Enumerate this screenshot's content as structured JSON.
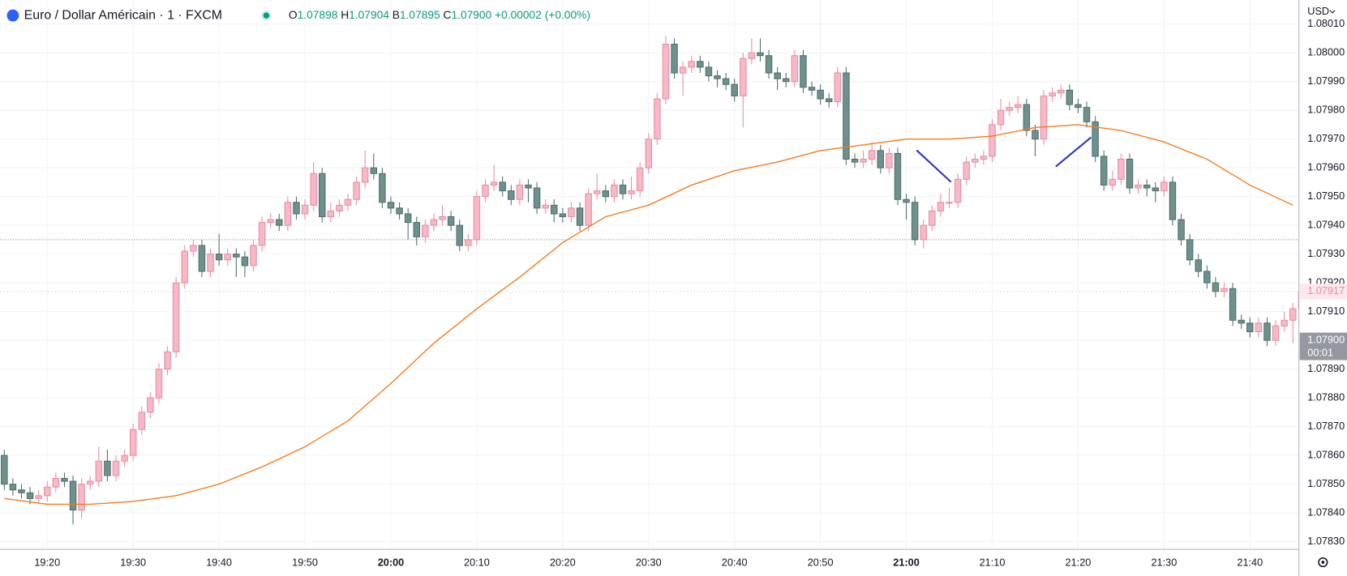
{
  "header": {
    "symbol": "Euro / Dollar Américain · 1 · FXCM",
    "legend": [
      {
        "key": "O",
        "value": 1.07898
      },
      {
        "key": "H",
        "value": 1.07904
      },
      {
        "key": "B",
        "value": 1.07895
      },
      {
        "key": "C",
        "value": {
          "value": 1.079,
          "label": "1.07900"
        }
      }
    ],
    "change": {
      "value": 2e-05,
      "label": "+0.00002"
    },
    "change_pct": {
      "value": 0,
      "label": "(+0.00%)"
    },
    "currency": "USD"
  },
  "chart_data": {
    "type": "candlestick",
    "categories": [
      null,
      null,
      null,
      null,
      null,
      "19:20",
      null,
      null,
      null,
      null,
      null,
      null,
      null,
      null,
      null,
      "19:30",
      null,
      null,
      null,
      null,
      null,
      null,
      null,
      null,
      null,
      "19:40",
      null,
      null,
      null,
      null,
      null,
      null,
      null,
      null,
      null,
      "19:50",
      null,
      null,
      null,
      null,
      null,
      null,
      null,
      null,
      null,
      "20:00",
      null,
      null,
      null,
      null,
      null,
      null,
      null,
      null,
      null,
      "20:10",
      null,
      null,
      null,
      null,
      null,
      null,
      null,
      null,
      null,
      "20:20",
      null,
      null,
      null,
      null,
      null,
      null,
      null,
      null,
      null,
      "20:30",
      null,
      null,
      null,
      null,
      null,
      null,
      null,
      null,
      null,
      "20:40",
      null,
      null,
      null,
      null,
      null,
      null,
      null,
      null,
      null,
      "20:50",
      null,
      null,
      null,
      null,
      null,
      null,
      null,
      null,
      null,
      "21:00",
      null,
      null,
      null,
      null,
      null,
      null,
      null,
      null,
      null,
      "21:10",
      null,
      null,
      null,
      null,
      null,
      null,
      null,
      null,
      null,
      "21:20",
      null,
      null,
      null,
      null,
      null,
      null,
      null,
      null,
      null,
      "21:30",
      null,
      null,
      null,
      null,
      null,
      null,
      null,
      null,
      null,
      "21:40",
      null,
      null,
      null,
      null,
      null,
      null
    ],
    "ohlc": [
      [
        1.0786,
        1.07862,
        1.07848,
        1.0785
      ],
      [
        1.0785,
        1.07852,
        1.07846,
        1.07848
      ],
      [
        1.07848,
        1.0785,
        1.07845,
        1.07847
      ],
      [
        1.07847,
        1.07849,
        1.07843,
        1.07845
      ],
      [
        1.07845,
        1.07848,
        1.07843,
        1.07846
      ],
      [
        1.07846,
        1.07851,
        1.07844,
        1.07849
      ],
      [
        1.07849,
        1.07854,
        1.07847,
        1.07852
      ],
      [
        1.07852,
        1.07854,
        1.07849,
        1.07851
      ],
      [
        1.07851,
        1.07853,
        1.07836,
        1.07841
      ],
      [
        1.07841,
        1.07852,
        1.07838,
        1.0785
      ],
      [
        1.0785,
        1.07853,
        1.07848,
        1.07851
      ],
      [
        1.07851,
        1.07863,
        1.07849,
        1.07858
      ],
      [
        1.07858,
        1.07862,
        1.07851,
        1.07853
      ],
      [
        1.07853,
        1.0786,
        1.07851,
        1.07858
      ],
      [
        1.07858,
        1.07862,
        1.07856,
        1.0786
      ],
      [
        1.0786,
        1.07871,
        1.07858,
        1.07869
      ],
      [
        1.07869,
        1.07877,
        1.07867,
        1.07875
      ],
      [
        1.07875,
        1.07882,
        1.07873,
        1.0788
      ],
      [
        1.0788,
        1.07892,
        1.07878,
        1.0789
      ],
      [
        1.0789,
        1.07898,
        1.07888,
        1.07896
      ],
      [
        1.07896,
        1.07922,
        1.07894,
        1.0792
      ],
      [
        1.0792,
        1.07933,
        1.07918,
        1.07931
      ],
      [
        1.07931,
        1.07935,
        1.07929,
        1.07933
      ],
      [
        1.07933,
        1.07935,
        1.07922,
        1.07924
      ],
      [
        1.07924,
        1.07932,
        1.07922,
        1.0793
      ],
      [
        1.0793,
        1.07937,
        1.07926,
        1.07928
      ],
      [
        1.07928,
        1.07932,
        1.07926,
        1.0793
      ],
      [
        1.0793,
        1.07932,
        1.07922,
        1.07929
      ],
      [
        1.07929,
        1.07931,
        1.07922,
        1.07926
      ],
      [
        1.07926,
        1.07935,
        1.07924,
        1.07933
      ],
      [
        1.07933,
        1.07943,
        1.07931,
        1.07941
      ],
      [
        1.07941,
        1.07944,
        1.07939,
        1.07942
      ],
      [
        1.07942,
        1.07944,
        1.07938,
        1.0794
      ],
      [
        1.0794,
        1.0795,
        1.07938,
        1.07948
      ],
      [
        1.07948,
        1.0795,
        1.07942,
        1.07944
      ],
      [
        1.07944,
        1.07949,
        1.07942,
        1.07947
      ],
      [
        1.07947,
        1.07962,
        1.07945,
        1.07958
      ],
      [
        1.07958,
        1.0796,
        1.07941,
        1.07943
      ],
      [
        1.07943,
        1.07948,
        1.07941,
        1.07945
      ],
      [
        1.07945,
        1.07949,
        1.07943,
        1.07947
      ],
      [
        1.07947,
        1.07951,
        1.07945,
        1.07949
      ],
      [
        1.07949,
        1.07957,
        1.07947,
        1.07955
      ],
      [
        1.07955,
        1.07966,
        1.07953,
        1.0796
      ],
      [
        1.0796,
        1.07965,
        1.07956,
        1.07958
      ],
      [
        1.07958,
        1.0796,
        1.07946,
        1.07948
      ],
      [
        1.07948,
        1.0795,
        1.07944,
        1.07946
      ],
      [
        1.07946,
        1.07948,
        1.07942,
        1.07944
      ],
      [
        1.07944,
        1.07946,
        1.07935,
        1.07941
      ],
      [
        1.07941,
        1.07943,
        1.07933,
        1.07936
      ],
      [
        1.07936,
        1.07942,
        1.07934,
        1.0794
      ],
      [
        1.0794,
        1.07944,
        1.07938,
        1.07942
      ],
      [
        1.07942,
        1.07947,
        1.0794,
        1.07943
      ],
      [
        1.07943,
        1.07945,
        1.07938,
        1.0794
      ],
      [
        1.0794,
        1.07942,
        1.07931,
        1.07933
      ],
      [
        1.07933,
        1.07937,
        1.07931,
        1.07935
      ],
      [
        1.07935,
        1.07952,
        1.07933,
        1.0795
      ],
      [
        1.0795,
        1.07956,
        1.07948,
        1.07954
      ],
      [
        1.07954,
        1.07961,
        1.07952,
        1.07955
      ],
      [
        1.07955,
        1.07957,
        1.0795,
        1.07952
      ],
      [
        1.07952,
        1.07954,
        1.07947,
        1.07949
      ],
      [
        1.07949,
        1.07956,
        1.07947,
        1.07954
      ],
      [
        1.07954,
        1.07956,
        1.07948,
        1.07953
      ],
      [
        1.07953,
        1.07955,
        1.07944,
        1.07946
      ],
      [
        1.07946,
        1.07949,
        1.07944,
        1.07947
      ],
      [
        1.07947,
        1.07949,
        1.07941,
        1.07944
      ],
      [
        1.07944,
        1.07946,
        1.07941,
        1.07943
      ],
      [
        1.07943,
        1.07948,
        1.07941,
        1.07946
      ],
      [
        1.07946,
        1.07948,
        1.07938,
        1.0794
      ],
      [
        1.0794,
        1.07953,
        1.07938,
        1.07951
      ],
      [
        1.07951,
        1.07958,
        1.07949,
        1.07952
      ],
      [
        1.07952,
        1.07954,
        1.07948,
        1.0795
      ],
      [
        1.0795,
        1.07956,
        1.07948,
        1.07954
      ],
      [
        1.07954,
        1.07956,
        1.07949,
        1.07951
      ],
      [
        1.07951,
        1.07957,
        1.07949,
        1.07952
      ],
      [
        1.07952,
        1.07962,
        1.0795,
        1.0796
      ],
      [
        1.0796,
        1.07972,
        1.07958,
        1.0797
      ],
      [
        1.0797,
        1.07986,
        1.07968,
        1.07984
      ],
      [
        1.07984,
        1.08006,
        1.07982,
        1.08003
      ],
      [
        1.08003,
        1.08005,
        1.07991,
        1.07993
      ],
      [
        1.07993,
        1.07997,
        1.07985,
        1.07995
      ],
      [
        1.07995,
        1.07999,
        1.07993,
        1.07997
      ],
      [
        1.07997,
        1.07999,
        1.07993,
        1.07995
      ],
      [
        1.07995,
        1.07997,
        1.0799,
        1.07992
      ],
      [
        1.07992,
        1.07994,
        1.07988,
        1.07991
      ],
      [
        1.07991,
        1.07993,
        1.07987,
        1.07989
      ],
      [
        1.07989,
        1.07991,
        1.07983,
        1.07985
      ],
      [
        1.07985,
        1.08,
        1.07974,
        1.07998
      ],
      [
        1.07998,
        1.08005,
        1.07996,
        1.08
      ],
      [
        1.08,
        1.08005,
        1.07997,
        1.07999
      ],
      [
        1.07999,
        1.08001,
        1.07991,
        1.07993
      ],
      [
        1.07993,
        1.07995,
        1.07987,
        1.07991
      ],
      [
        1.07991,
        1.07993,
        1.07988,
        1.0799
      ],
      [
        1.0799,
        1.08001,
        1.07988,
        1.07999
      ],
      [
        1.07999,
        1.08001,
        1.07986,
        1.07988
      ],
      [
        1.07988,
        1.0799,
        1.07985,
        1.07987
      ],
      [
        1.07987,
        1.07989,
        1.07982,
        1.07984
      ],
      [
        1.07984,
        1.07986,
        1.07981,
        1.07983
      ],
      [
        1.07983,
        1.07995,
        1.07981,
        1.07993
      ],
      [
        1.07993,
        1.07995,
        1.07961,
        1.07963
      ],
      [
        1.07963,
        1.07965,
        1.0796,
        1.07962
      ],
      [
        1.07962,
        1.07966,
        1.0796,
        1.07963
      ],
      [
        1.07963,
        1.07969,
        1.07961,
        1.07966
      ],
      [
        1.07966,
        1.07968,
        1.07958,
        1.0796
      ],
      [
        1.0796,
        1.07967,
        1.07958,
        1.07965
      ],
      [
        1.07965,
        1.07967,
        1.07947,
        1.07949
      ],
      [
        1.07949,
        1.07951,
        1.07942,
        1.07948
      ],
      [
        1.07948,
        1.0795,
        1.07933,
        1.07935
      ],
      [
        1.07935,
        1.07942,
        1.07932,
        1.0794
      ],
      [
        1.0794,
        1.07947,
        1.07938,
        1.07945
      ],
      [
        1.07945,
        1.07951,
        1.07943,
        1.07948
      ],
      [
        1.07948,
        1.07953,
        1.07946,
        1.07948
      ],
      [
        1.07948,
        1.07958,
        1.07946,
        1.07956
      ],
      [
        1.07956,
        1.07964,
        1.07954,
        1.07962
      ],
      [
        1.07962,
        1.07965,
        1.0796,
        1.07963
      ],
      [
        1.07963,
        1.07966,
        1.07961,
        1.07964
      ],
      [
        1.07964,
        1.07977,
        1.07962,
        1.07975
      ],
      [
        1.07975,
        1.07984,
        1.07973,
        1.0798
      ],
      [
        1.0798,
        1.07983,
        1.07978,
        1.07981
      ],
      [
        1.07981,
        1.07985,
        1.07979,
        1.07982
      ],
      [
        1.07982,
        1.07984,
        1.07971,
        1.07973
      ],
      [
        1.07973,
        1.07975,
        1.07964,
        1.0797
      ],
      [
        1.0797,
        1.07987,
        1.07968,
        1.07985
      ],
      [
        1.07985,
        1.07988,
        1.07983,
        1.07986
      ],
      [
        1.07986,
        1.07989,
        1.07984,
        1.07987
      ],
      [
        1.07987,
        1.07989,
        1.0798,
        1.07982
      ],
      [
        1.07982,
        1.07984,
        1.07979,
        1.07981
      ],
      [
        1.07981,
        1.07983,
        1.07974,
        1.07976
      ],
      [
        1.07976,
        1.07978,
        1.07962,
        1.07964
      ],
      [
        1.07964,
        1.07966,
        1.07952,
        1.07954
      ],
      [
        1.07954,
        1.07959,
        1.07952,
        1.07956
      ],
      [
        1.07956,
        1.07965,
        1.07954,
        1.07963
      ],
      [
        1.07963,
        1.07965,
        1.07951,
        1.07953
      ],
      [
        1.07953,
        1.07956,
        1.07951,
        1.07954
      ],
      [
        1.07954,
        1.07956,
        1.0795,
        1.07953
      ],
      [
        1.07953,
        1.07955,
        1.07948,
        1.07952
      ],
      [
        1.07952,
        1.07957,
        1.0795,
        1.07955
      ],
      [
        1.07955,
        1.07957,
        1.0794,
        1.07942
      ],
      [
        1.07942,
        1.07944,
        1.07933,
        1.07935
      ],
      [
        1.07935,
        1.07937,
        1.07926,
        1.07928
      ],
      [
        1.07928,
        1.0793,
        1.07922,
        1.07924
      ],
      [
        1.07924,
        1.07926,
        1.07918,
        1.0792
      ],
      [
        1.0792,
        1.07922,
        1.07915,
        1.07917
      ],
      [
        1.07917,
        1.0792,
        1.07915,
        1.07918
      ],
      [
        1.07918,
        1.0792,
        1.07905,
        1.07907
      ],
      [
        1.07907,
        1.07909,
        1.07904,
        1.07906
      ],
      [
        1.07906,
        1.07908,
        1.07901,
        1.07903
      ],
      [
        1.07903,
        1.07908,
        1.07901,
        1.07906
      ],
      [
        1.07906,
        1.07908,
        1.07898,
        1.079
      ],
      [
        1.079,
        1.07907,
        1.07898,
        1.07905
      ],
      [
        1.07905,
        1.0791,
        1.07903,
        1.07907
      ],
      [
        1.07907,
        1.07913,
        1.07899,
        1.07911
      ],
      [
        1.07911,
        1.07919,
        1.07909,
        1.07917
      ]
    ],
    "up_color": "#f7b9c6",
    "up_border": "#e58da3",
    "down_color": "#6f918e",
    "down_border": "#4f6e6b",
    "moving_average": {
      "color": "#f57c1f",
      "x": [
        "19:15",
        "19:20",
        "19:25",
        "19:30",
        "19:35",
        "19:40",
        "19:45",
        "19:50",
        "19:55",
        "20:00",
        "20:05",
        "20:10",
        "20:15",
        "20:20",
        "20:25",
        "20:30",
        "20:35",
        "20:40",
        "20:45",
        "20:50",
        "20:55",
        "21:00",
        "21:05",
        "21:10",
        "21:15",
        "21:20",
        "21:25",
        "21:30",
        "21:35",
        "21:40",
        "21:45"
      ],
      "values": [
        1.07845,
        1.07843,
        1.07843,
        1.07844,
        1.07846,
        1.0785,
        1.07856,
        1.07863,
        1.07872,
        1.07885,
        1.07899,
        1.07911,
        1.07922,
        1.07934,
        1.07943,
        1.07947,
        1.07954,
        1.07959,
        1.07962,
        1.07966,
        1.07968,
        1.0797,
        1.0797,
        1.07971,
        1.07974,
        1.07975,
        1.07973,
        1.07969,
        1.07963,
        1.07954,
        1.07947
      ]
    },
    "ylim": [
      1.0783,
      1.0801
    ],
    "yticks": [
      {
        "value": 1.0783,
        "label": "1.07830"
      },
      {
        "value": 1.0784,
        "label": "1.07840"
      },
      {
        "value": 1.0785,
        "label": "1.07850"
      },
      {
        "value": 1.0786,
        "label": "1.07860"
      },
      {
        "value": 1.0787,
        "label": "1.07870"
      },
      {
        "value": 1.0788,
        "label": "1.07880"
      },
      {
        "value": 1.0789,
        "label": "1.07890"
      },
      {
        "value": 1.079,
        "label": "1.07900"
      },
      {
        "value": 1.0791,
        "label": "1.07910"
      },
      {
        "value": 1.0792,
        "label": "1.07920"
      },
      {
        "value": 1.0793,
        "label": "1.07930"
      },
      {
        "value": 1.0794,
        "label": "1.07940"
      },
      {
        "value": 1.0795,
        "label": "1.07950"
      },
      {
        "value": 1.0796,
        "label": "1.07960"
      },
      {
        "value": 1.0797,
        "label": "1.07970"
      },
      {
        "value": 1.0798,
        "label": "1.07980"
      },
      {
        "value": 1.0799,
        "label": "1.07990"
      },
      {
        "value": 1.08,
        "label": "1.08000"
      },
      {
        "value": 1.0801,
        "label": "1.08010"
      }
    ],
    "grid": true,
    "reference_line": 1.07935,
    "last_price": {
      "value": 1.07917,
      "label": "1.07917"
    },
    "bid_price": {
      "value": 1.079,
      "label": "1.07900"
    },
    "countdown": "00:01"
  }
}
